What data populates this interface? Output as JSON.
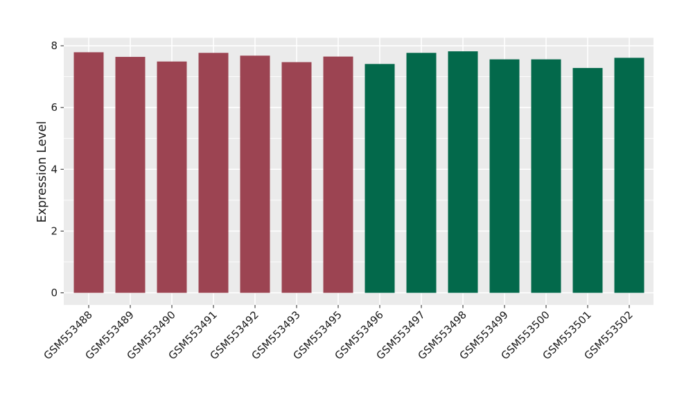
{
  "chart_data": {
    "type": "bar",
    "title": "",
    "xlabel": "",
    "ylabel": "Expression Level",
    "ylim": [
      0,
      8
    ],
    "yticks": [
      0,
      2,
      4,
      6,
      8
    ],
    "yticks_minor": [
      1,
      3,
      5,
      7
    ],
    "grid": true,
    "legend_position": "none",
    "categories": [
      "GSM553488",
      "GSM553489",
      "GSM553490",
      "GSM553491",
      "GSM553492",
      "GSM553493",
      "GSM553495",
      "GSM553496",
      "GSM553497",
      "GSM553498",
      "GSM553499",
      "GSM553500",
      "GSM553501",
      "GSM553502"
    ],
    "values": [
      7.79,
      7.64,
      7.49,
      7.77,
      7.68,
      7.47,
      7.65,
      7.41,
      7.77,
      7.82,
      7.56,
      7.56,
      7.28,
      7.61
    ],
    "bar_colors": [
      "#9C4452",
      "#9C4452",
      "#9C4452",
      "#9C4452",
      "#9C4452",
      "#9C4452",
      "#9C4452",
      "#03694B",
      "#03694B",
      "#03694B",
      "#03694B",
      "#03694B",
      "#03694B",
      "#03694B"
    ],
    "group_colors": {
      "group1": "#9C4452",
      "group2": "#03694B"
    },
    "panel_bg": "#EBEBEB",
    "grid_color": "#FFFFFF",
    "tick_color": "#333333",
    "text_color": "#1A1A1A",
    "plot_bg": "#FFFFFF"
  }
}
